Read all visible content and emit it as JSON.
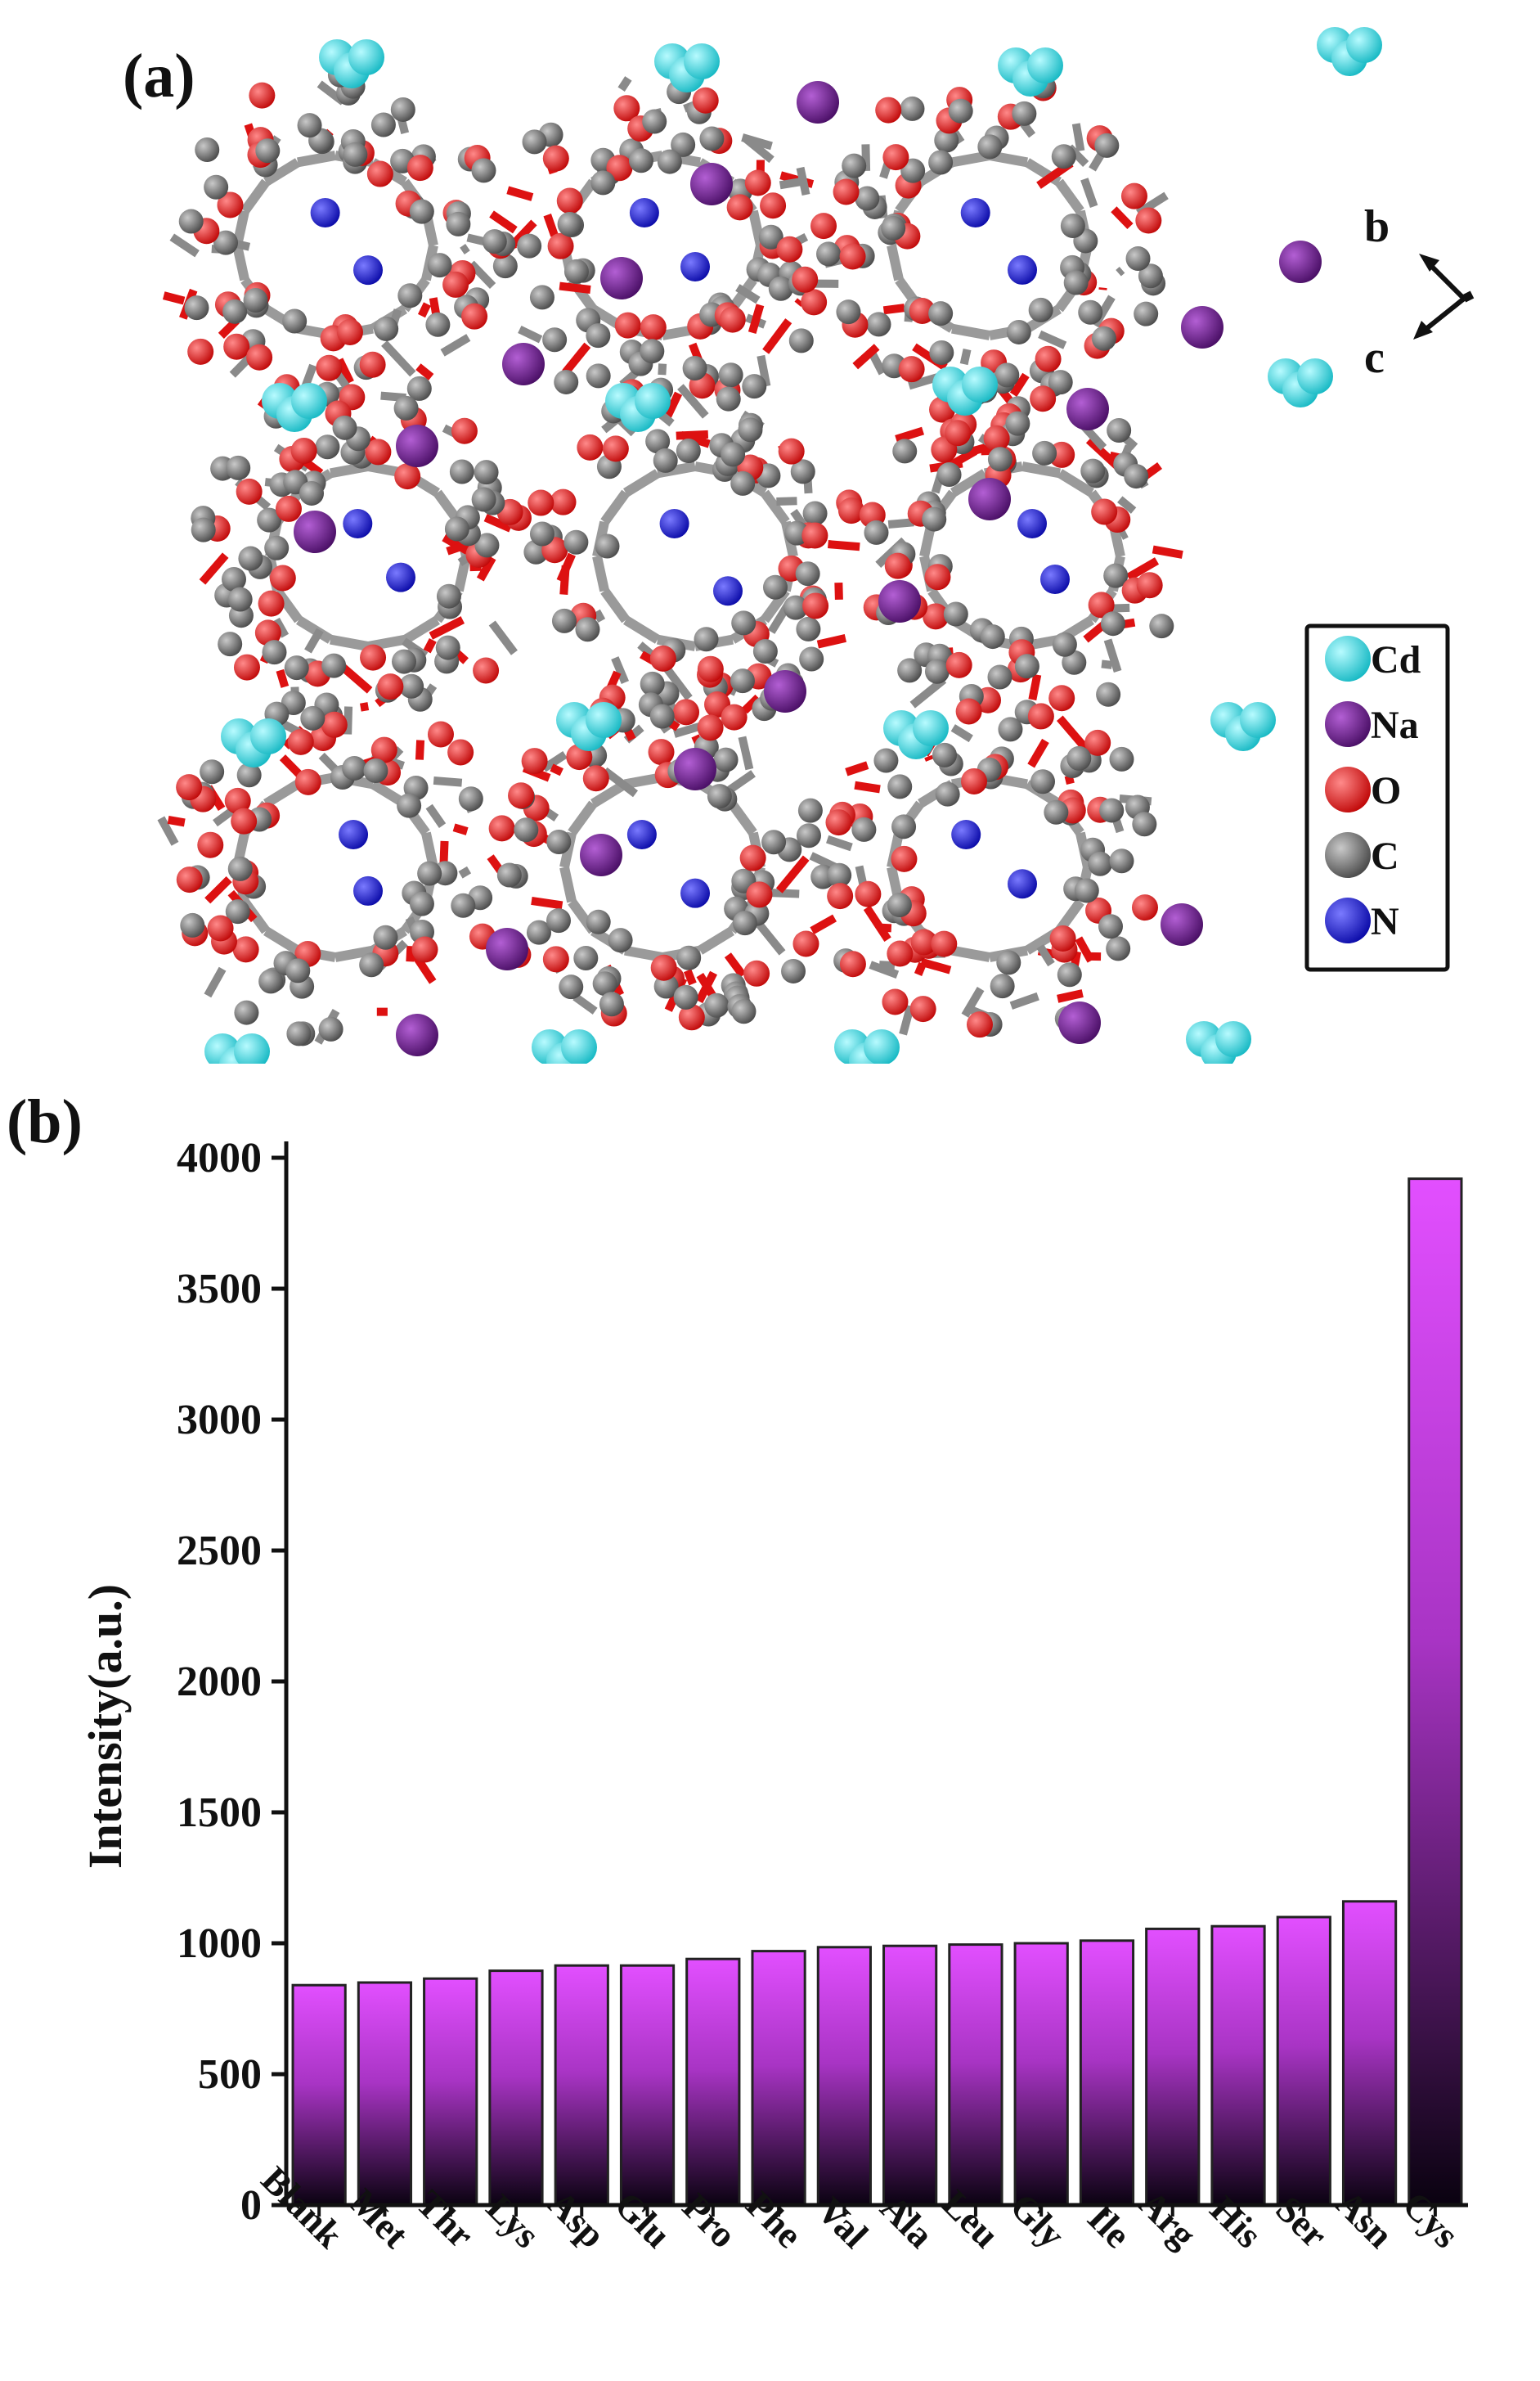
{
  "panel_a": {
    "label": "(a)",
    "axes": {
      "b": "b",
      "c": "c"
    },
    "legend": [
      {
        "symbol": "Cd",
        "color": "#2ed6e0"
      },
      {
        "symbol": "Na",
        "color": "#6a1f8a"
      },
      {
        "symbol": "O",
        "color": "#e31212"
      },
      {
        "symbol": "C",
        "color": "#6e6e6e"
      },
      {
        "symbol": "N",
        "color": "#1a1ad6"
      }
    ]
  },
  "panel_b": {
    "label": "(b)"
  },
  "chart_data": {
    "type": "bar",
    "title": "",
    "xlabel": "",
    "ylabel": "Intensity(a.u.)",
    "ylim": [
      0,
      4000
    ],
    "yticks": [
      0,
      500,
      1000,
      1500,
      2000,
      2500,
      3000,
      3500,
      4000
    ],
    "categories": [
      "Blank",
      "Met",
      "Thr",
      "Lys",
      "Asp",
      "Glu",
      "Pro",
      "Phe",
      "Val",
      "Ala",
      "Leu",
      "Gly",
      "Ile",
      "Arg",
      "His",
      "Ser",
      "Asn",
      "Cys"
    ],
    "values": [
      840,
      850,
      865,
      895,
      915,
      915,
      940,
      970,
      985,
      990,
      995,
      1000,
      1010,
      1055,
      1065,
      1100,
      1160,
      3920
    ],
    "bar_gradient": {
      "top": "#e24fff",
      "bottom": "#0a0210"
    },
    "grid": false
  }
}
